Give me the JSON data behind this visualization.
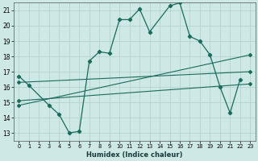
{
  "title": "",
  "xlabel": "Humidex (Indice chaleur)",
  "xlim": [
    -0.5,
    23.5
  ],
  "ylim": [
    12.5,
    21.5
  ],
  "yticks": [
    13,
    14,
    15,
    16,
    17,
    18,
    19,
    20,
    21
  ],
  "xticks": [
    0,
    1,
    2,
    3,
    4,
    5,
    6,
    7,
    8,
    9,
    10,
    11,
    12,
    13,
    14,
    15,
    16,
    17,
    18,
    19,
    20,
    21,
    22,
    23
  ],
  "bg_color": "#cde8e5",
  "grid_color": "#b0d0cc",
  "line_color": "#1a6b5a",
  "main_curve_x": [
    0,
    1,
    3,
    4,
    5,
    6,
    7,
    8,
    9,
    10,
    11,
    12,
    13,
    15,
    16,
    17,
    18,
    19,
    20,
    21,
    22
  ],
  "main_curve_y": [
    16.7,
    16.1,
    14.8,
    14.2,
    13.0,
    13.1,
    17.7,
    18.3,
    18.2,
    20.4,
    20.4,
    21.1,
    19.6,
    21.3,
    21.5,
    19.3,
    19.0,
    18.1,
    16.0,
    14.3,
    16.5
  ],
  "trend1_x": [
    0,
    23
  ],
  "trend1_y": [
    16.3,
    17.0
  ],
  "trend2_x": [
    0,
    23
  ],
  "trend2_y": [
    14.8,
    18.1
  ],
  "trend3_x": [
    0,
    23
  ],
  "trend3_y": [
    15.1,
    16.2
  ],
  "trend1_markers_x": [
    0,
    3,
    7,
    11,
    15,
    19,
    23
  ],
  "trend1_markers_y": [
    16.3,
    16.5,
    16.6,
    16.7,
    16.8,
    16.9,
    17.0
  ],
  "trend2_markers_x": [
    0,
    5,
    10,
    15,
    20,
    23
  ],
  "trend2_markers_y": [
    14.8,
    15.5,
    16.3,
    17.0,
    17.7,
    18.1
  ],
  "trend3_markers_x": [
    0,
    5,
    10,
    15,
    20,
    23
  ],
  "trend3_markers_y": [
    15.1,
    15.4,
    15.6,
    15.8,
    16.1,
    16.2
  ]
}
